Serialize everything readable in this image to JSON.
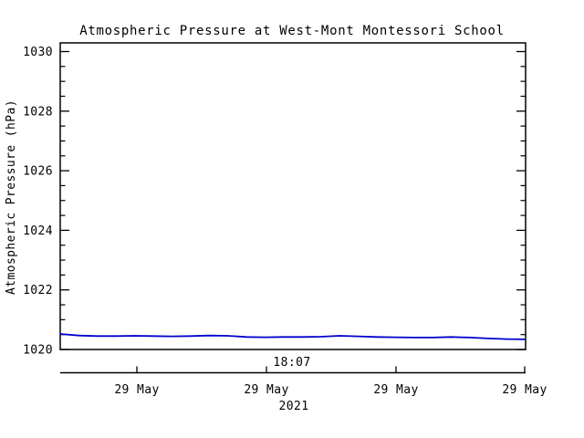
{
  "chart_data": {
    "type": "line",
    "title": "Atmospheric Pressure at West-Mont Montessori School",
    "xlabel": "18:07",
    "ylabel": "Atmospheric Pressure (hPa)",
    "ylim": [
      1020,
      1030.3
    ],
    "y_major_ticks": [
      1020,
      1022,
      1024,
      1026,
      1028,
      1030
    ],
    "y_minor_step": 0.5,
    "x_tick_labels": [
      "29 May",
      "29 May",
      "29 May",
      "29 May"
    ],
    "x_year_label": "2021",
    "grid": false,
    "legend_position": "none",
    "line_color": "#0000cd",
    "axis_color": "#000000",
    "background_color": "#ffffff",
    "series": [
      {
        "name": "Atmospheric Pressure",
        "color": "#0000cd",
        "values": [
          1020.52,
          1020.47,
          1020.45,
          1020.45,
          1020.46,
          1020.45,
          1020.44,
          1020.45,
          1020.47,
          1020.46,
          1020.42,
          1020.41,
          1020.42,
          1020.42,
          1020.43,
          1020.46,
          1020.44,
          1020.42,
          1020.41,
          1020.4,
          1020.4,
          1020.42,
          1020.4,
          1020.37,
          1020.35,
          1020.34
        ]
      }
    ]
  }
}
